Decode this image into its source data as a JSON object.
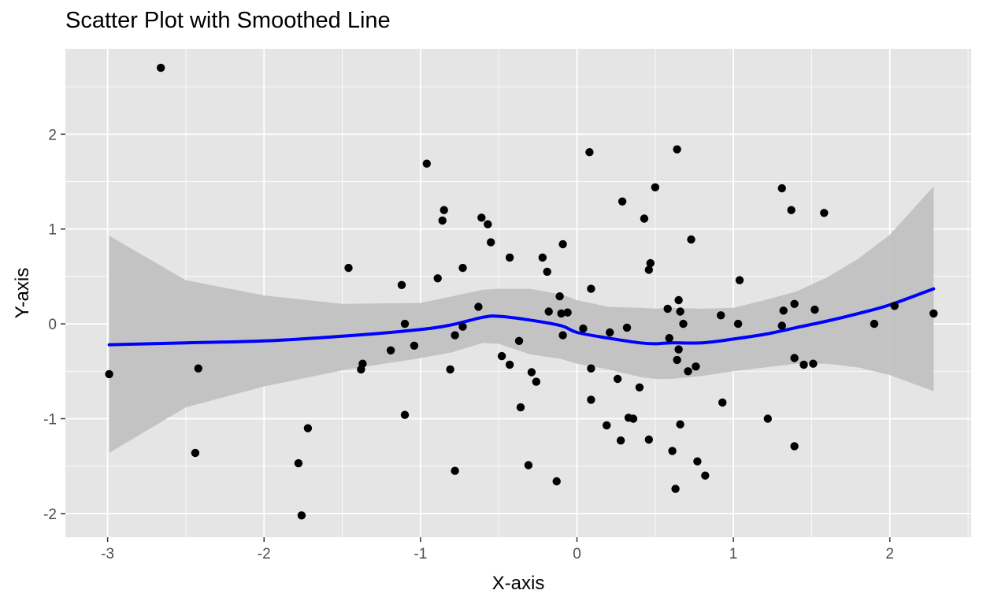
{
  "chart_data": {
    "type": "scatter",
    "title": "Scatter Plot with Smoothed Line",
    "xlabel": "X-axis",
    "ylabel": "Y-axis",
    "xlim": [
      -3.27,
      2.52
    ],
    "ylim": [
      -2.25,
      2.9
    ],
    "x_ticks": [
      -3,
      -2,
      -1,
      0,
      1,
      2
    ],
    "x_tick_labels": [
      "-3",
      "-2",
      "-1",
      "0",
      "1",
      "2"
    ],
    "y_ticks": [
      -2,
      -1,
      0,
      1,
      2
    ],
    "y_tick_labels": [
      "-2",
      "-1",
      "0",
      "1",
      "2"
    ],
    "grid": true,
    "legend": "none",
    "colors": {
      "panel": "#e5e5e5",
      "grid": "#ffffff",
      "points": "#000000",
      "smooth_line": "#0000ff",
      "ribbon": "#bfbfbf"
    },
    "points": [
      [
        -2.66,
        2.7
      ],
      [
        -2.99,
        -0.53
      ],
      [
        -2.42,
        -0.47
      ],
      [
        -2.44,
        -1.36
      ],
      [
        -1.78,
        -1.47
      ],
      [
        -1.76,
        -2.02
      ],
      [
        -1.72,
        -1.1
      ],
      [
        -1.46,
        0.59
      ],
      [
        -1.38,
        -0.48
      ],
      [
        -1.37,
        -0.42
      ],
      [
        -1.19,
        -0.28
      ],
      [
        -1.12,
        0.41
      ],
      [
        -1.1,
        0.0
      ],
      [
        -1.1,
        -0.96
      ],
      [
        -1.04,
        -0.23
      ],
      [
        -0.96,
        1.69
      ],
      [
        -0.89,
        0.48
      ],
      [
        -0.86,
        1.09
      ],
      [
        -0.85,
        1.2
      ],
      [
        -0.81,
        -0.48
      ],
      [
        -0.78,
        -0.12
      ],
      [
        -0.78,
        -1.55
      ],
      [
        -0.73,
        0.59
      ],
      [
        -0.73,
        -0.03
      ],
      [
        -0.63,
        0.18
      ],
      [
        -0.61,
        1.12
      ],
      [
        -0.57,
        1.05
      ],
      [
        -0.55,
        0.86
      ],
      [
        -0.48,
        -0.34
      ],
      [
        -0.43,
        0.7
      ],
      [
        -0.43,
        -0.43
      ],
      [
        -0.37,
        -0.18
      ],
      [
        -0.36,
        -0.88
      ],
      [
        -0.31,
        -1.49
      ],
      [
        -0.29,
        -0.51
      ],
      [
        -0.26,
        -0.61
      ],
      [
        -0.22,
        0.7
      ],
      [
        -0.19,
        0.55
      ],
      [
        -0.18,
        0.13
      ],
      [
        -0.13,
        -1.66
      ],
      [
        -0.11,
        0.29
      ],
      [
        -0.1,
        0.11
      ],
      [
        -0.09,
        -0.12
      ],
      [
        -0.09,
        0.84
      ],
      [
        -0.06,
        0.12
      ],
      [
        0.04,
        -0.05
      ],
      [
        0.08,
        1.81
      ],
      [
        0.09,
        0.37
      ],
      [
        0.09,
        -0.47
      ],
      [
        0.09,
        -0.8
      ],
      [
        0.19,
        -1.07
      ],
      [
        0.21,
        -0.09
      ],
      [
        0.26,
        -0.58
      ],
      [
        0.28,
        -1.23
      ],
      [
        0.29,
        1.29
      ],
      [
        0.32,
        -0.04
      ],
      [
        0.33,
        -0.99
      ],
      [
        0.36,
        -1.0
      ],
      [
        0.4,
        -0.67
      ],
      [
        0.43,
        1.11
      ],
      [
        0.46,
        -1.22
      ],
      [
        0.46,
        0.57
      ],
      [
        0.47,
        0.64
      ],
      [
        0.5,
        1.44
      ],
      [
        0.58,
        0.16
      ],
      [
        0.59,
        -0.15
      ],
      [
        0.61,
        -1.34
      ],
      [
        0.63,
        -1.74
      ],
      [
        0.64,
        1.84
      ],
      [
        0.64,
        -0.38
      ],
      [
        0.65,
        -0.27
      ],
      [
        0.65,
        0.25
      ],
      [
        0.66,
        0.13
      ],
      [
        0.66,
        -1.06
      ],
      [
        0.68,
        0.0
      ],
      [
        0.71,
        -0.5
      ],
      [
        0.73,
        0.89
      ],
      [
        0.76,
        -0.45
      ],
      [
        0.77,
        -1.45
      ],
      [
        0.82,
        -1.6
      ],
      [
        0.92,
        0.09
      ],
      [
        0.93,
        -0.83
      ],
      [
        1.03,
        0.0
      ],
      [
        1.04,
        0.46
      ],
      [
        1.22,
        -1.0
      ],
      [
        1.31,
        1.43
      ],
      [
        1.31,
        -0.02
      ],
      [
        1.32,
        0.14
      ],
      [
        1.37,
        1.2
      ],
      [
        1.39,
        0.21
      ],
      [
        1.39,
        -0.36
      ],
      [
        1.39,
        -1.29
      ],
      [
        1.45,
        -0.43
      ],
      [
        1.51,
        -0.42
      ],
      [
        1.52,
        0.15
      ],
      [
        1.58,
        1.17
      ],
      [
        1.9,
        0.0
      ],
      [
        2.03,
        0.19
      ],
      [
        2.28,
        0.11
      ]
    ],
    "smooth": {
      "x": [
        -2.99,
        -2.5,
        -2.0,
        -1.5,
        -1.0,
        -0.8,
        -0.6,
        -0.5,
        -0.3,
        -0.1,
        0.0,
        0.2,
        0.4,
        0.5,
        0.6,
        0.8,
        1.0,
        1.2,
        1.4,
        1.6,
        1.8,
        2.0,
        2.28
      ],
      "y": [
        -0.22,
        -0.2,
        -0.18,
        -0.13,
        -0.06,
        -0.01,
        0.07,
        0.08,
        0.04,
        -0.02,
        -0.09,
        -0.15,
        -0.2,
        -0.21,
        -0.2,
        -0.2,
        -0.16,
        -0.11,
        -0.04,
        0.03,
        0.11,
        0.2,
        0.37
      ],
      "lower": [
        -1.36,
        -0.88,
        -0.66,
        -0.49,
        -0.36,
        -0.3,
        -0.2,
        -0.21,
        -0.32,
        -0.37,
        -0.42,
        -0.48,
        -0.56,
        -0.58,
        -0.58,
        -0.55,
        -0.5,
        -0.46,
        -0.42,
        -0.42,
        -0.46,
        -0.54,
        -0.71
      ],
      "upper": [
        0.93,
        0.46,
        0.3,
        0.21,
        0.22,
        0.29,
        0.36,
        0.37,
        0.37,
        0.31,
        0.25,
        0.18,
        0.17,
        0.16,
        0.17,
        0.16,
        0.17,
        0.25,
        0.34,
        0.49,
        0.69,
        0.94,
        1.45
      ]
    }
  }
}
